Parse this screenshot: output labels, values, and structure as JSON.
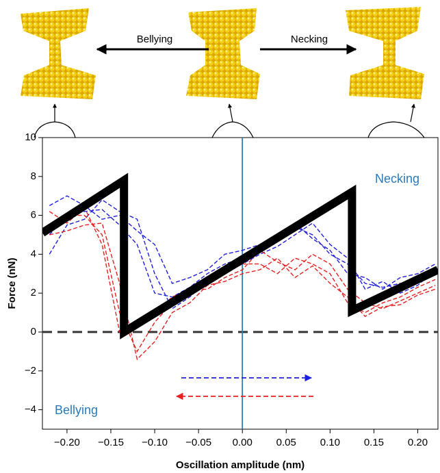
{
  "chart_data": {
    "type": "line",
    "ylabel": "Force (nN)",
    "xlabel": "Oscillation amplitude (nm)",
    "annotations": [
      "Necking",
      "Bellying"
    ],
    "illustration_labels": [
      "Bellying",
      "Necking"
    ],
    "xlim": [
      -0.228,
      0.223
    ],
    "ylim": [
      -5,
      10
    ],
    "xticks": [
      {
        "value": -0.2,
        "label": "−0.20"
      },
      {
        "value": -0.15,
        "label": "−0.15"
      },
      {
        "value": -0.1,
        "label": "−0.10"
      },
      {
        "value": -0.05,
        "label": "−0.05"
      },
      {
        "value": 0,
        "label": "0.00"
      },
      {
        "value": 0.05,
        "label": "0.05"
      },
      {
        "value": 0.1,
        "label": "0.10"
      },
      {
        "value": 0.15,
        "label": "0.15"
      },
      {
        "value": 0.2,
        "label": "0.20"
      }
    ],
    "yticks": [
      {
        "value": -4,
        "label": "−4"
      },
      {
        "value": -2,
        "label": "−2"
      },
      0,
      2,
      4,
      6,
      8,
      10
    ],
    "grid": false,
    "reference_lines": [
      {
        "axis": "y",
        "value": 0,
        "color": "#333333",
        "style": "dashed"
      },
      {
        "axis": "x",
        "value": 0,
        "color": "#2b7bb9",
        "style": "solid"
      }
    ],
    "x": [
      -0.22,
      -0.2,
      -0.18,
      -0.16,
      -0.14,
      -0.12,
      -0.1,
      -0.08,
      -0.06,
      -0.04,
      -0.02,
      0,
      0.02,
      0.04,
      0.06,
      0.08,
      0.1,
      0.12,
      0.14,
      0.16,
      0.18,
      0.2,
      0.22
    ],
    "series": [
      {
        "color": "#1f1fe0",
        "style": "dashed",
        "values": [
          5,
          6,
          6.2,
          6.3,
          5.5,
          4.5,
          2,
          1.8,
          2.3,
          3,
          3.5,
          3.8,
          4.2,
          4.8,
          5.4,
          5,
          4,
          3.5,
          2.5,
          2.3,
          2.5,
          2.6,
          3
        ]
      },
      {
        "color": "#1f1fe0",
        "style": "dashed",
        "values": [
          6.5,
          7,
          6.5,
          5.8,
          6,
          5.2,
          4.5,
          2.5,
          2.8,
          3.2,
          4,
          4.2,
          4.5,
          5,
          5.6,
          4.8,
          4.2,
          3,
          2.8,
          2.2,
          2.8,
          3,
          3.5
        ]
      },
      {
        "color": "#1f1fe0",
        "style": "dashed",
        "values": [
          4,
          5.5,
          5.8,
          6.8,
          6.2,
          5.8,
          3,
          1.2,
          1.8,
          2.6,
          3,
          3.5,
          4,
          4.4,
          5,
          5.6,
          4.5,
          3.8,
          2.2,
          2.6,
          2,
          2.4,
          3.2
        ]
      },
      {
        "color": "#e81f1f",
        "style": "dashed",
        "values": [
          5.5,
          6,
          6,
          5,
          1,
          -1,
          0.5,
          1.5,
          2,
          2.5,
          3,
          3.5,
          3.5,
          3,
          3.8,
          3.5,
          3,
          1.5,
          1,
          1.5,
          1.8,
          2.3,
          2.7
        ]
      },
      {
        "color": "#e81f1f",
        "style": "dashed",
        "values": [
          6.2,
          5.6,
          6.4,
          4.5,
          0,
          0.2,
          1,
          1.8,
          2.2,
          2.2,
          2.8,
          3.2,
          4.2,
          3.6,
          3.2,
          4,
          3.5,
          2.2,
          1.5,
          1.2,
          1.6,
          2,
          2.4
        ]
      },
      {
        "color": "#e81f1f",
        "style": "dashed",
        "values": [
          5,
          5.2,
          5.5,
          5.6,
          2.5,
          -1.4,
          -0.5,
          1,
          1.5,
          2.4,
          2.6,
          3,
          3.2,
          3.8,
          2.8,
          3.4,
          2.5,
          1.8,
          0.8,
          1.3,
          1.4,
          1.9,
          2.2
        ]
      },
      {
        "color": "#000000",
        "style": "thick",
        "x": [
          -0.228,
          -0.135,
          -0.135,
          0.125,
          0.125,
          0.223
        ],
        "values": [
          5.1,
          7.8,
          0,
          7.2,
          1.1,
          3.2
        ]
      }
    ]
  }
}
